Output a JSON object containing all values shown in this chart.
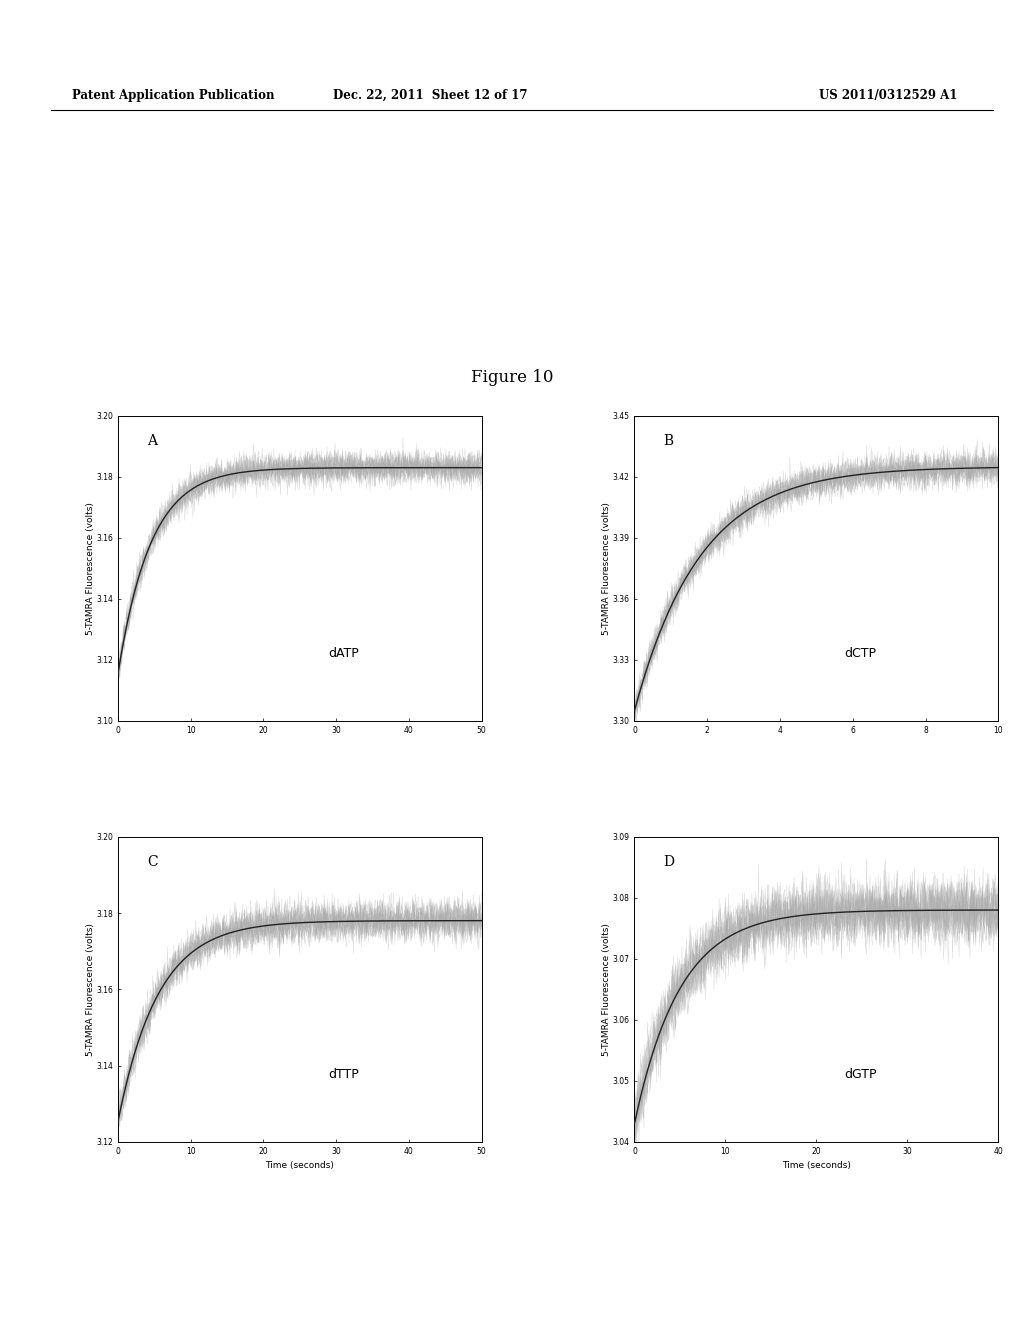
{
  "figure_title": "Figure 10",
  "header_left": "Patent Application Publication",
  "header_center": "Dec. 22, 2011  Sheet 12 of 17",
  "header_right": "US 2011/0312529 A1",
  "panels": [
    {
      "label": "A",
      "nucleotide": "dATP",
      "ylabel": "5-TAMRA Fluorescence (volts)",
      "xlabel": "",
      "xlim": [
        0,
        50
      ],
      "ylim": [
        3.1,
        3.2
      ],
      "yticks": [
        3.1,
        3.12,
        3.14,
        3.16,
        3.18,
        3.2
      ],
      "xticks": [
        0,
        10,
        20,
        30,
        40,
        50
      ],
      "curve_start": 3.115,
      "curve_plateau": 3.183,
      "time_constant": 4.5,
      "noise_amplitude": 0.0025,
      "n_traces": 15
    },
    {
      "label": "B",
      "nucleotide": "dCTP",
      "ylabel": "5-TAMRA Fluorescence (volts)",
      "xlabel": "",
      "xlim": [
        0,
        10
      ],
      "ylim": [
        3.3,
        3.45
      ],
      "yticks": [
        3.3,
        3.33,
        3.36,
        3.39,
        3.42,
        3.45
      ],
      "xticks": [
        0,
        2,
        4,
        6,
        8,
        10
      ],
      "curve_start": 3.305,
      "curve_plateau": 3.425,
      "time_constant": 1.8,
      "noise_amplitude": 0.004,
      "n_traces": 15
    },
    {
      "label": "C",
      "nucleotide": "dTTP",
      "ylabel": "5-TAMRA Fluorescence (volts)",
      "xlabel": "Time (seconds)",
      "xlim": [
        0,
        50
      ],
      "ylim": [
        3.12,
        3.2
      ],
      "yticks": [
        3.12,
        3.14,
        3.16,
        3.18,
        3.2
      ],
      "xticks": [
        0,
        10,
        20,
        30,
        40,
        50
      ],
      "curve_start": 3.125,
      "curve_plateau": 3.178,
      "time_constant": 5.5,
      "noise_amplitude": 0.0025,
      "n_traces": 15
    },
    {
      "label": "D",
      "nucleotide": "dGTP",
      "ylabel": "5-TAMRA Fluorescence (volts)",
      "xlabel": "Time (seconds)",
      "xlim": [
        0,
        40
      ],
      "ylim": [
        3.04,
        3.09
      ],
      "yticks": [
        3.04,
        3.05,
        3.06,
        3.07,
        3.08,
        3.09
      ],
      "xticks": [
        0,
        10,
        20,
        30,
        40
      ],
      "curve_start": 3.043,
      "curve_plateau": 3.078,
      "time_constant": 5.0,
      "noise_amplitude": 0.0025,
      "n_traces": 15
    }
  ],
  "curve_color": "#222222",
  "noise_color": "#888888",
  "background_color": "#ffffff",
  "tick_fontsize": 5.5,
  "label_fontsize": 6.5,
  "nucleotide_fontsize": 9,
  "panel_label_fontsize": 10,
  "title_fontsize": 12,
  "header_fontsize": 8.5
}
